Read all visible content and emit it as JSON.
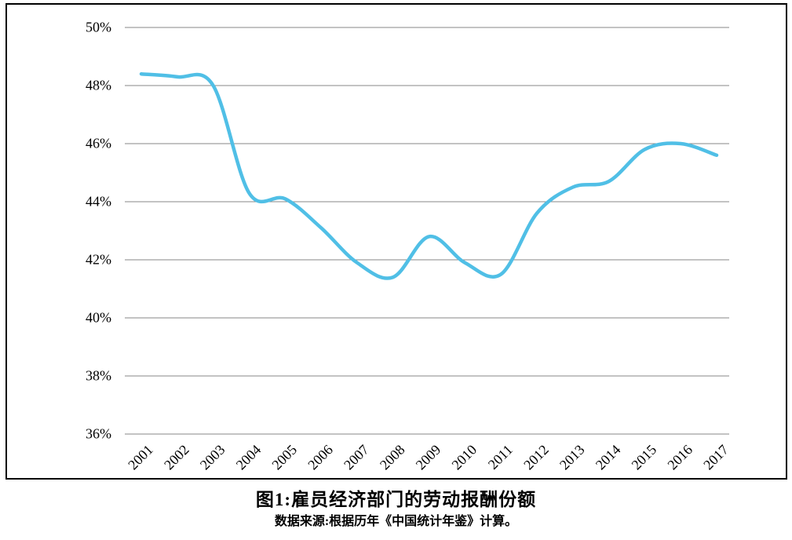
{
  "figure": {
    "caption": "图1:雇员经济部门的劳动报酬份额",
    "source_note": "数据来源:根据历年《中国统计年鉴》计算。"
  },
  "chart_data": {
    "type": "line",
    "title": "图1:雇员经济部门的劳动报酬份额",
    "x": [
      2001,
      2002,
      2003,
      2004,
      2005,
      2006,
      2007,
      2008,
      2009,
      2010,
      2011,
      2012,
      2013,
      2014,
      2015,
      2016,
      2017
    ],
    "xtick_labels": [
      "2001",
      "2002",
      "2003",
      "2004",
      "2005",
      "2006",
      "2007",
      "2008",
      "2009",
      "2010",
      "2011",
      "2012",
      "2013",
      "2014",
      "2015",
      "2016",
      "2017"
    ],
    "series": [
      {
        "name": "雇员经济部门的劳动报酬份额",
        "values": [
          48.4,
          48.3,
          48.0,
          44.3,
          44.1,
          43.1,
          41.9,
          41.4,
          42.8,
          41.9,
          41.5,
          43.6,
          44.5,
          44.7,
          45.8,
          46.0,
          45.6
        ]
      }
    ],
    "ylim": [
      36,
      50
    ],
    "ytick_step": 2,
    "ytick_labels": [
      "50%",
      "48%",
      "46%",
      "44%",
      "42%",
      "40%",
      "38%",
      "36%"
    ],
    "ytick_values": [
      50,
      48,
      46,
      44,
      42,
      40,
      38,
      36
    ],
    "xlabel": "",
    "ylabel": "",
    "grid": "horizontal",
    "legend": "none",
    "smooth": true,
    "colors": {
      "line": "#50BFE6",
      "gridline": "#878787",
      "frame_border": "#000000",
      "text": "#000000",
      "background": "#ffffff"
    }
  }
}
